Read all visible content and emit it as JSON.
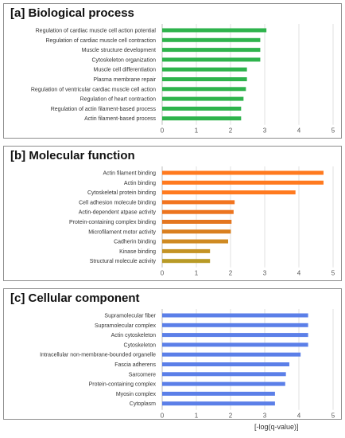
{
  "chart_data": [
    {
      "type": "bar",
      "orientation": "horizontal",
      "title": "[a] Biological process",
      "categories": [
        "Regulation of cardiac muscle cell action potential",
        "Regulation of cardiac muscle cell contraction",
        "Muscle structure development",
        "Cytoskeleton organization",
        "Muscle cell differentiation",
        "Plasma membrane repair",
        "Regulation of ventricular cardiac muscle cell action",
        "Regulation of heart contraction",
        "Regulation of actin filament-based process",
        "Actin filament-based process"
      ],
      "values": [
        3.05,
        2.87,
        2.87,
        2.87,
        2.48,
        2.48,
        2.45,
        2.38,
        2.31,
        2.31
      ],
      "bar_colors": [
        "#2eb34c",
        "#2eb34c",
        "#2eb34c",
        "#2eb34c",
        "#2eb34c",
        "#2eb34c",
        "#2eb34c",
        "#2eb34c",
        "#2eb34c",
        "#2eb34c"
      ],
      "xlim": [
        0,
        5
      ],
      "xticks": [
        "0",
        "1",
        "2",
        "3",
        "4",
        "5"
      ],
      "grid": "vertical"
    },
    {
      "type": "bar",
      "orientation": "horizontal",
      "title": "[b] Molecular function",
      "categories": [
        "Actin filament binding",
        "Actin binding",
        "Cytoskeletal protein binding",
        "Cell adhesion molecule binding",
        "Actin-dependent atpase activity",
        "Protein-containing complex binding",
        "Microfilament motor activity",
        "Cadherin binding",
        "Kinase binding",
        "Structural molecule activity"
      ],
      "values": [
        4.72,
        4.72,
        3.9,
        2.12,
        2.09,
        2.03,
        2.01,
        1.93,
        1.4,
        1.4
      ],
      "bar_colors": [
        "#ff7a1f",
        "#ff7a1f",
        "#ff7a1f",
        "#f2741f",
        "#ec741f",
        "#e4761f",
        "#d98020",
        "#cf8a22",
        "#c49324",
        "#b89a26"
      ],
      "xlim": [
        0,
        5
      ],
      "xticks": [
        "0",
        "1",
        "2",
        "3",
        "4",
        "5"
      ],
      "grid": "vertical"
    },
    {
      "type": "bar",
      "orientation": "horizontal",
      "title": "[c] Cellular component",
      "categories": [
        "Supramolecular fiber",
        "Supramolecular complex",
        "Actin cytoskeleton",
        "Cytoskeleton",
        "Intracellular non-membrane-bounded organelle",
        "Fascia adherens",
        "Sarcomere",
        "Protein-containing complex",
        "Myosin complex",
        "Cytoplasm"
      ],
      "values": [
        4.27,
        4.27,
        4.27,
        4.27,
        4.05,
        3.72,
        3.62,
        3.6,
        3.3,
        3.3
      ],
      "bar_colors": [
        "#5b7fe8",
        "#5b7fe8",
        "#5b7fe8",
        "#5b7fe8",
        "#5b7fe8",
        "#5b7fe8",
        "#5b7fe8",
        "#5b7fe8",
        "#5b7fe8",
        "#5b7fe8"
      ],
      "xlim": [
        0,
        5
      ],
      "xticks": [
        "0",
        "1",
        "2",
        "3",
        "4",
        "5"
      ],
      "grid": "vertical"
    }
  ],
  "xlabel": "[-log(q-value)]"
}
